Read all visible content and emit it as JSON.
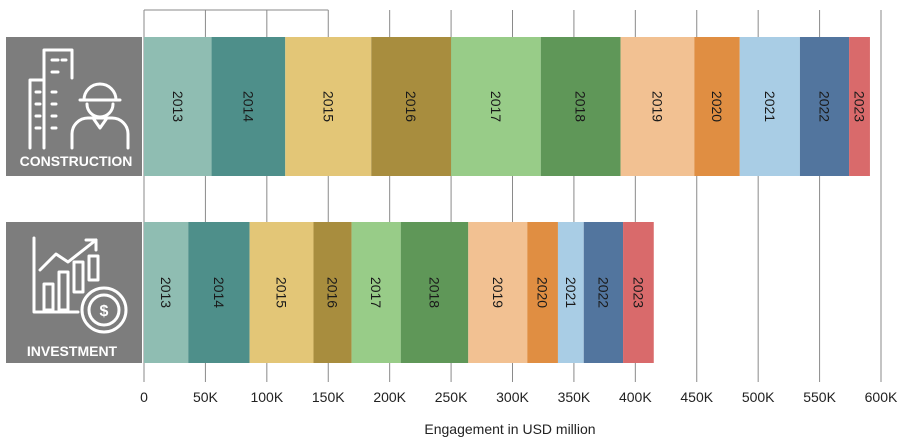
{
  "chart_data": {
    "type": "bar",
    "orientation": "horizontal",
    "stacked": true,
    "xlabel": "Engagement in USD million",
    "xlim": [
      0,
      600000
    ],
    "x_ticks": [
      {
        "value": 0,
        "label": "0"
      },
      {
        "value": 50000,
        "label": "50K"
      },
      {
        "value": 100000,
        "label": "100K"
      },
      {
        "value": 150000,
        "label": "150K"
      },
      {
        "value": 200000,
        "label": "200K"
      },
      {
        "value": 250000,
        "label": "250K"
      },
      {
        "value": 300000,
        "label": "300K"
      },
      {
        "value": 350000,
        "label": "350K"
      },
      {
        "value": 400000,
        "label": "400K"
      },
      {
        "value": 450000,
        "label": "450K"
      },
      {
        "value": 500000,
        "label": "500K"
      },
      {
        "value": 550000,
        "label": "550K"
      },
      {
        "value": 600000,
        "label": "600K"
      }
    ],
    "grid": "vertical",
    "categories": [
      "CONSTRUCTION",
      "INVESTMENT"
    ],
    "category_icons": [
      "building-worker-icon",
      "growth-chart-dollar-icon"
    ],
    "series": [
      {
        "name": "2013",
        "color": "#8fbdb2",
        "values": [
          55000,
          36000
        ]
      },
      {
        "name": "2014",
        "color": "#4e8f8a",
        "values": [
          60000,
          50000
        ]
      },
      {
        "name": "2015",
        "color": "#e3c677",
        "values": [
          70000,
          52000
        ]
      },
      {
        "name": "2016",
        "color": "#a88d3e",
        "values": [
          65000,
          31000
        ]
      },
      {
        "name": "2017",
        "color": "#98cc88",
        "values": [
          73000,
          40000
        ]
      },
      {
        "name": "2018",
        "color": "#5f9758",
        "values": [
          65000,
          55000
        ]
      },
      {
        "name": "2019",
        "color": "#f2c192",
        "values": [
          60000,
          48000
        ]
      },
      {
        "name": "2020",
        "color": "#e08e42",
        "values": [
          37000,
          25000
        ]
      },
      {
        "name": "2021",
        "color": "#a9cde5",
        "values": [
          49000,
          21000
        ]
      },
      {
        "name": "2022",
        "color": "#52759e",
        "values": [
          40000,
          32000
        ]
      },
      {
        "name": "2023",
        "color": "#d96a6b",
        "values": [
          17000,
          25000
        ]
      }
    ]
  }
}
